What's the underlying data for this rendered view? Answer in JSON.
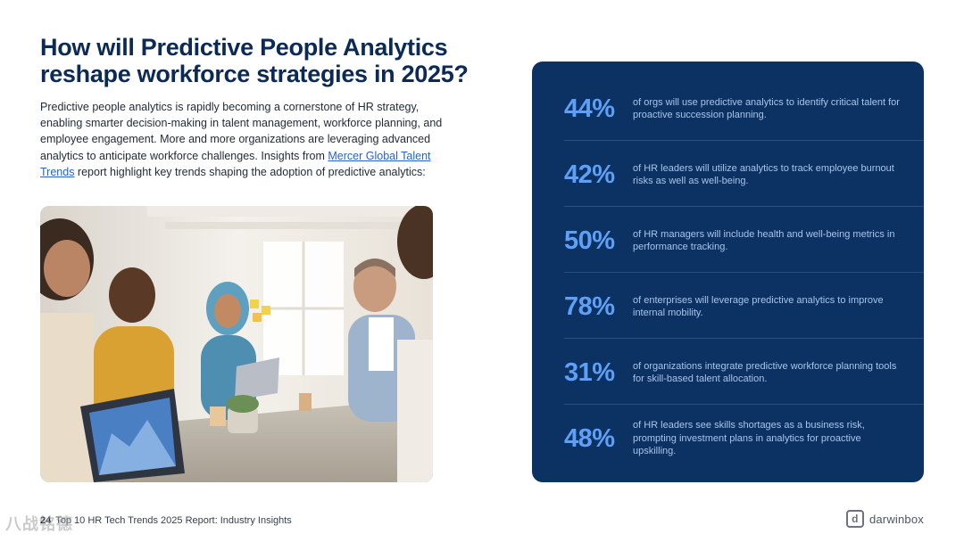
{
  "title": {
    "line1": "How will Predictive People Analytics",
    "line2": "reshape workforce strategies in 2025?"
  },
  "intro": {
    "before_link": "Predictive people analytics is rapidly becoming a cornerstone of HR strategy, enabling smarter decision-making in talent management, workforce planning, and employee engagement. More and more organizations are leveraging advanced analytics to anticipate workforce challenges. Insights from ",
    "link": "Mercer Global Talent Trends",
    "after_link": " report highlight key trends shaping the adoption of predictive analytics:"
  },
  "stats": [
    {
      "value": "44%",
      "text": "of orgs will use predictive analytics to identify critical talent for proactive succession planning."
    },
    {
      "value": "42%",
      "text": "of HR leaders will utilize analytics to track employee burnout risks as well as well-being."
    },
    {
      "value": "50%",
      "text": "of HR managers will include health and well-being metrics in performance tracking."
    },
    {
      "value": "78%",
      "text": "of enterprises will leverage predictive analytics to improve internal mobility."
    },
    {
      "value": "31%",
      "text": "of organizations integrate predictive workforce planning tools for skill-based talent allocation."
    },
    {
      "value": "48%",
      "text": "of HR leaders see skills shortages as a business risk, prompting investment plans in analytics for proactive upskilling."
    }
  ],
  "footer": {
    "page_number": "24",
    "report_title": "Top 10 HR Tech Trends 2025 Report: Industry Insights"
  },
  "brand": {
    "icon_letter": "d",
    "name": "darwinbox"
  },
  "watermark": "八战铭德",
  "colors": {
    "title": "#0b2a55",
    "panel": "#0c3263",
    "stat_value": "#5ea0f5",
    "link": "#2563c9"
  },
  "icons": {
    "brand": "darwinbox-logo-icon"
  }
}
